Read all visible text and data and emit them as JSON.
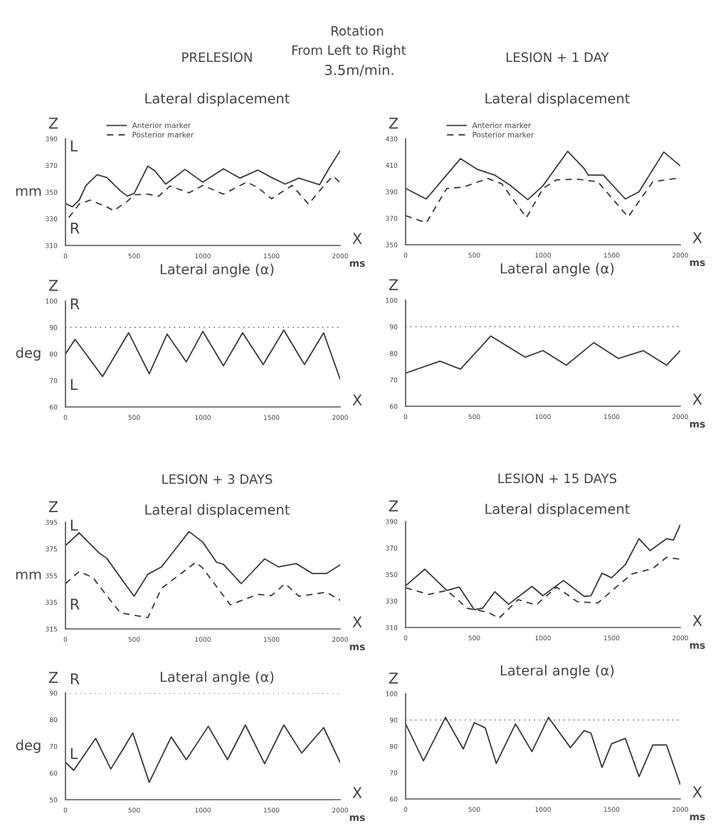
{
  "chart_data": [
    {
      "type": "other",
      "title": "Rotation",
      "annotations": [
        "From Left to Right",
        "3.5m/min."
      ]
    },
    {
      "type": "line",
      "title": "PRELESION",
      "subtitle": "Lateral displacement",
      "xlabel": "ms",
      "ylabel": "mm",
      "annotations": [
        "Z",
        "X",
        "L",
        "R"
      ],
      "xlim": [
        0,
        2000
      ],
      "xticks": [
        0,
        500,
        1000,
        1500,
        2000
      ],
      "ylim": [
        310,
        390
      ],
      "yticks": [
        310,
        330,
        350,
        370,
        390
      ],
      "grid": false,
      "legend": "top",
      "series": [
        {
          "name": "Anterior marker",
          "color": "#3a3a3a",
          "line_style": "solid",
          "x": [
            0,
            50,
            100,
            150,
            230,
            300,
            400,
            450,
            500,
            600,
            650,
            730,
            870,
            1000,
            1150,
            1270,
            1400,
            1500,
            1600,
            1700,
            1850,
            1920,
            2000
          ],
          "values": [
            341.5,
            339,
            344,
            355,
            363,
            361,
            351,
            347,
            349,
            369.5,
            366,
            356,
            367,
            357.5,
            367.5,
            360.5,
            366.5,
            361,
            356,
            360.5,
            355.5,
            368,
            381
          ]
        },
        {
          "name": "Posterior marker",
          "color": "#3a3a3a",
          "line_style": "dashed",
          "x": [
            25,
            100,
            180,
            300,
            350,
            450,
            500,
            600,
            680,
            760,
            900,
            1000,
            1150,
            1320,
            1400,
            1500,
            1650,
            1770,
            1900,
            1950,
            2000
          ],
          "values": [
            331,
            341,
            344,
            339,
            336,
            343,
            348,
            348.5,
            347,
            354.5,
            349.5,
            355,
            348.5,
            357.5,
            353.5,
            345,
            355,
            341,
            357,
            362,
            357
          ]
        }
      ]
    },
    {
      "type": "line",
      "title": "Lateral angle (α)",
      "ylabel": "deg",
      "annotations": [
        "Z",
        "X",
        "R",
        "L"
      ],
      "xlim": [
        0,
        2000
      ],
      "xticks": [
        0,
        500,
        1000,
        1500,
        2000
      ],
      "ylim": [
        60,
        100
      ],
      "yticks": [
        60,
        70,
        80,
        90,
        100
      ],
      "grid": false,
      "ref_lines": [
        {
          "axis": "y",
          "value": 90,
          "line_style": "dotted"
        }
      ],
      "series": [
        {
          "color": "#3a3a3a",
          "line_style": "solid",
          "x": [
            0,
            70,
            270,
            460,
            610,
            740,
            880,
            1000,
            1150,
            1290,
            1440,
            1590,
            1740,
            1880,
            2000
          ],
          "values": [
            80,
            85.5,
            71.5,
            88,
            72.5,
            87.5,
            77,
            88.5,
            75.5,
            88,
            76,
            89,
            76,
            88,
            70.5
          ]
        }
      ]
    },
    {
      "type": "line",
      "title": "LESION + 1 DAY",
      "subtitle": "Lateral displacement",
      "xlabel": "ms",
      "annotations": [
        "Z",
        "X"
      ],
      "xlim": [
        0,
        2000
      ],
      "xticks": [
        0,
        500,
        1000,
        1500,
        2000
      ],
      "ylim": [
        350,
        430
      ],
      "yticks": [
        350,
        370,
        390,
        410,
        430
      ],
      "grid": false,
      "legend": "top",
      "series": [
        {
          "name": "Anterior marker",
          "color": "#3a3a3a",
          "line_style": "solid",
          "x": [
            0,
            150,
            400,
            520,
            650,
            760,
            890,
            1000,
            1180,
            1300,
            1330,
            1440,
            1600,
            1700,
            1880,
            2000
          ],
          "values": [
            392.5,
            384.5,
            415,
            407,
            402.5,
            395,
            384,
            394.5,
            420.5,
            407.5,
            402.5,
            402.5,
            384.5,
            390,
            420,
            409.5
          ]
        },
        {
          "name": "Posterior marker",
          "color": "#3a3a3a",
          "line_style": "dashed",
          "x": [
            0,
            150,
            300,
            420,
            600,
            700,
            880,
            1000,
            1100,
            1250,
            1400,
            1620,
            1800,
            2000
          ],
          "values": [
            372,
            366.5,
            392.5,
            393.5,
            400,
            396,
            370.5,
            392.5,
            399,
            399.5,
            397.5,
            371,
            397.5,
            400.5
          ]
        }
      ]
    },
    {
      "type": "line",
      "title": "Lateral angle (α)",
      "xlabel": "ms",
      "annotations": [
        "Z",
        "X"
      ],
      "xlim": [
        0,
        2000
      ],
      "xticks": [
        0,
        500,
        1000,
        1500,
        2000
      ],
      "ylim": [
        60,
        100
      ],
      "yticks": [
        60,
        70,
        80,
        90,
        100
      ],
      "grid": false,
      "ref_lines": [
        {
          "axis": "y",
          "value": 90,
          "line_style": "dotted"
        }
      ],
      "series": [
        {
          "color": "#3a3a3a",
          "line_style": "solid",
          "x": [
            0,
            250,
            400,
            620,
            870,
            1000,
            1170,
            1370,
            1550,
            1730,
            1900,
            2000
          ],
          "values": [
            72.5,
            77,
            74,
            86.5,
            78.5,
            81,
            75.5,
            84,
            78,
            81,
            75.5,
            81
          ]
        }
      ]
    },
    {
      "type": "line",
      "title": "LESION + 3 DAYS",
      "subtitle": "Lateral displacement",
      "xlabel": "ms",
      "ylabel": "mm",
      "annotations": [
        "Z",
        "X",
        "L",
        "R"
      ],
      "xlim": [
        0,
        2000
      ],
      "xticks": [
        0,
        500,
        1000,
        1500,
        2000
      ],
      "ylim": [
        315,
        395
      ],
      "yticks": [
        315,
        335,
        355,
        375,
        395
      ],
      "grid": false,
      "series": [
        {
          "color": "#3a3a3a",
          "line_style": "solid",
          "x": [
            0,
            100,
            250,
            300,
            450,
            500,
            600,
            700,
            900,
            1000,
            1100,
            1150,
            1280,
            1450,
            1550,
            1680,
            1800,
            1900,
            2000
          ],
          "values": [
            377.5,
            387,
            371.5,
            368,
            346.5,
            339.5,
            356,
            361.5,
            388,
            380,
            365,
            363.5,
            349,
            367.5,
            361.5,
            364,
            356.5,
            356.5,
            363
          ]
        },
        {
          "color": "#3a3a3a",
          "line_style": "dashed",
          "x": [
            0,
            100,
            200,
            300,
            400,
            600,
            700,
            950,
            1000,
            1200,
            1400,
            1500,
            1600,
            1700,
            1900,
            2000
          ],
          "values": [
            349,
            358,
            353.5,
            340,
            327,
            323.5,
            345.5,
            365,
            360.5,
            333,
            341,
            340,
            349,
            339.5,
            342.5,
            336.5
          ]
        }
      ]
    },
    {
      "type": "line",
      "title": "Lateral angle (α)",
      "xlabel": "ms",
      "ylabel": "deg",
      "annotations": [
        "Z",
        "X",
        "R",
        "L"
      ],
      "xlim": [
        0,
        2000
      ],
      "xticks": [
        0,
        500,
        1000,
        1500,
        2000
      ],
      "ylim": [
        50,
        90
      ],
      "yticks": [
        50,
        60,
        70,
        80,
        90
      ],
      "grid": false,
      "ref_lines": [
        {
          "axis": "y",
          "value": 90,
          "line_style": "dotted"
        }
      ],
      "series": [
        {
          "color": "#3a3a3a",
          "line_style": "solid",
          "x": [
            0,
            60,
            220,
            330,
            420,
            490,
            610,
            770,
            880,
            1040,
            1180,
            1310,
            1450,
            1590,
            1720,
            1880,
            2000
          ],
          "values": [
            64,
            61,
            73,
            61.5,
            69,
            75,
            56.5,
            73.5,
            65,
            77.5,
            65,
            78,
            63.5,
            78,
            67.5,
            77,
            64
          ]
        }
      ]
    },
    {
      "type": "line",
      "title": "LESION + 15 DAYS",
      "subtitle": "Lateral displacement",
      "xlabel": "ms",
      "annotations": [
        "Z",
        "X"
      ],
      "xlim": [
        0,
        2000
      ],
      "xticks": [
        0,
        500,
        1000,
        1500,
        2000
      ],
      "ylim": [
        310,
        390
      ],
      "yticks": [
        310,
        330,
        350,
        370,
        390
      ],
      "grid": false,
      "series": [
        {
          "color": "#3a3a3a",
          "line_style": "solid",
          "x": [
            0,
            140,
            300,
            390,
            500,
            560,
            650,
            750,
            920,
            1000,
            1150,
            1300,
            1350,
            1430,
            1500,
            1600,
            1700,
            1780,
            1900,
            1950,
            2000
          ],
          "values": [
            341.5,
            354,
            338,
            340.5,
            323.5,
            324.5,
            337,
            327.5,
            341,
            334,
            345.5,
            333.5,
            334,
            351,
            347.5,
            357.5,
            377,
            368,
            377,
            376,
            387.5
          ]
        },
        {
          "color": "#3a3a3a",
          "line_style": "dashed",
          "x": [
            0,
            170,
            300,
            450,
            600,
            680,
            820,
            950,
            1100,
            1250,
            1400,
            1550,
            1650,
            1800,
            1900,
            2000
          ],
          "values": [
            340,
            335,
            338,
            324.5,
            321.5,
            317,
            331,
            327,
            340.5,
            329.5,
            328.5,
            342,
            350.5,
            354.5,
            363,
            361.5
          ]
        }
      ]
    },
    {
      "type": "line",
      "title": "Lateral angle (α)",
      "xlabel": "ms",
      "annotations": [
        "Z",
        "X"
      ],
      "xlim": [
        0,
        2000
      ],
      "xticks": [
        0,
        500,
        1000,
        1500,
        2000
      ],
      "ylim": [
        60,
        100
      ],
      "yticks": [
        60,
        70,
        80,
        90,
        100
      ],
      "grid": false,
      "ref_lines": [
        {
          "axis": "y",
          "value": 90,
          "line_style": "dotted"
        }
      ],
      "series": [
        {
          "color": "#3a3a3a",
          "line_style": "solid",
          "x": [
            0,
            130,
            290,
            420,
            500,
            580,
            660,
            800,
            920,
            1040,
            1200,
            1300,
            1350,
            1430,
            1500,
            1600,
            1700,
            1800,
            1900,
            2000
          ],
          "values": [
            88.5,
            74.5,
            91,
            79,
            89,
            87,
            73.5,
            88.5,
            78,
            91,
            79.5,
            86,
            85,
            72,
            81,
            83,
            68.5,
            80.5,
            80.5,
            65.5
          ]
        }
      ]
    }
  ]
}
